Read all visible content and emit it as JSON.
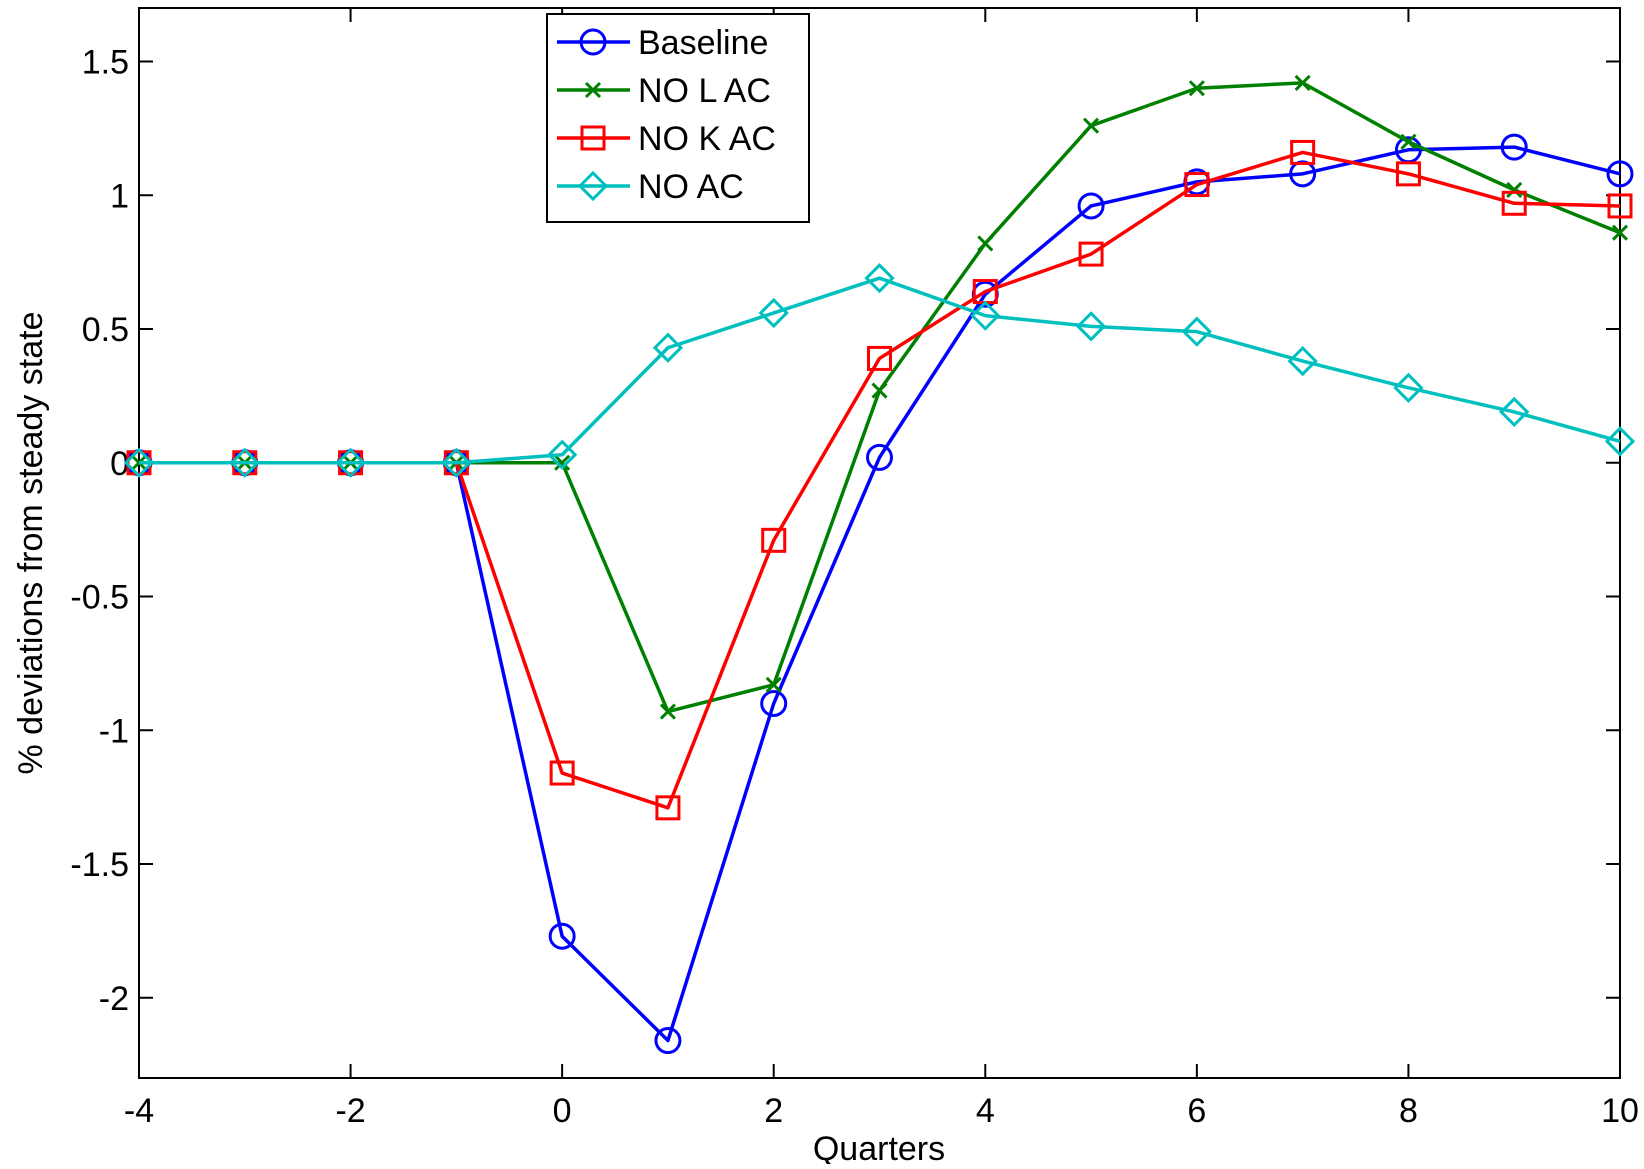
{
  "chart_data": {
    "type": "line",
    "title": "",
    "xlabel": "Quarters",
    "ylabel": "% deviations from steady state",
    "xlim": [
      -4,
      10
    ],
    "ylim": [
      -2.3,
      1.7
    ],
    "xticks": [
      -4,
      -2,
      0,
      2,
      4,
      6,
      8,
      10
    ],
    "xtick_labels": [
      "-4",
      "-2",
      "0",
      "2",
      "4",
      "6",
      "8",
      "10"
    ],
    "yticks": [
      -2,
      -1.5,
      -1,
      -0.5,
      0,
      0.5,
      1,
      1.5
    ],
    "ytick_labels": [
      "-2",
      "-1.5",
      "-1",
      "-0.5",
      "0",
      "0.5",
      "1",
      "1.5"
    ],
    "grid": false,
    "legend_position": "top-left",
    "x": [
      -4,
      -3,
      -2,
      -1,
      0,
      1,
      2,
      3,
      4,
      5,
      6,
      7,
      8,
      9,
      10
    ],
    "series": [
      {
        "name": "Baseline",
        "color": "#0000ff",
        "marker": "circle",
        "values": [
          0,
          0,
          0,
          0,
          -1.77,
          -2.16,
          -0.9,
          0.02,
          0.63,
          0.96,
          1.05,
          1.08,
          1.17,
          1.18,
          1.08
        ]
      },
      {
        "name": "NO L AC",
        "color": "#008000",
        "marker": "x",
        "values": [
          0,
          0,
          0,
          0,
          0,
          -0.93,
          -0.83,
          0.27,
          0.82,
          1.26,
          1.4,
          1.42,
          1.2,
          1.02,
          0.86
        ]
      },
      {
        "name": "NO K AC",
        "color": "#ff0000",
        "marker": "square",
        "values": [
          0,
          0,
          0,
          0,
          -1.16,
          -1.29,
          -0.29,
          0.39,
          0.64,
          0.78,
          1.04,
          1.16,
          1.08,
          0.97,
          0.96
        ]
      },
      {
        "name": "NO AC",
        "color": "#00bfbf",
        "marker": "diamond",
        "values": [
          0,
          0,
          0,
          0,
          0.03,
          0.43,
          0.56,
          0.69,
          0.55,
          0.51,
          0.49,
          0.38,
          0.28,
          0.19,
          0.08
        ]
      }
    ]
  }
}
